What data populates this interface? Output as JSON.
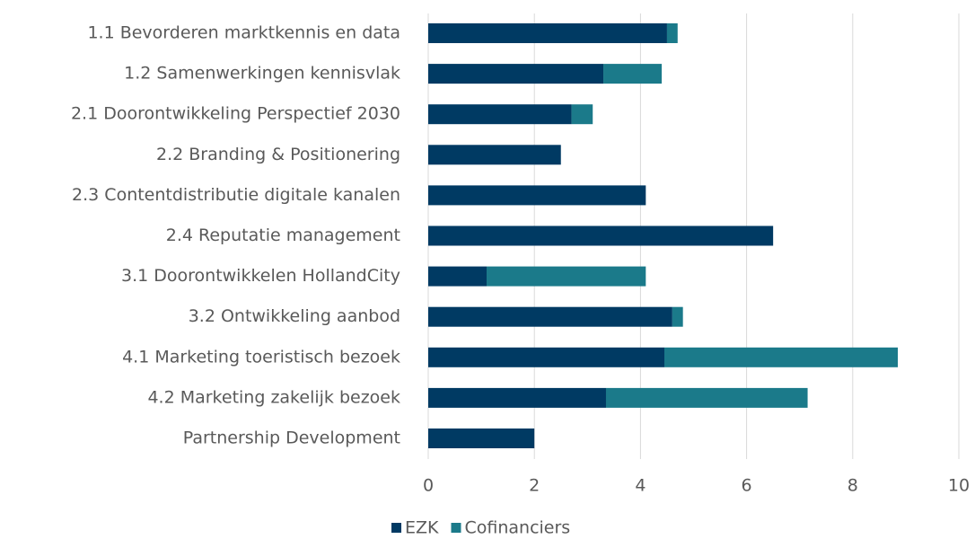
{
  "chart_data": {
    "type": "stacked-bar-horizontal",
    "categories": [
      "1.1 Bevorderen marktkennis en data",
      "1.2 Samenwerkingen kennisvlak",
      "2.1 Doorontwikkeling Perspectief 2030",
      "2.2 Branding & Positionering",
      "2.3 Contentdistributie digitale kanalen",
      "2.4 Reputatie management",
      "3.1 Doorontwikkelen HollandCity",
      "3.2 Ontwikkeling aanbod",
      "4.1 Marketing toeristisch bezoek",
      "4.2 Marketing zakelijk bezoek",
      "Partnership Development"
    ],
    "series": [
      {
        "name": "EZK",
        "color": "#003a63",
        "values": [
          4.5,
          3.3,
          2.7,
          2.5,
          4.1,
          6.5,
          1.1,
          4.6,
          4.45,
          3.35,
          2.0
        ]
      },
      {
        "name": "Cofinanciers",
        "color": "#1b7a8a",
        "values": [
          0.2,
          1.1,
          0.4,
          null,
          null,
          null,
          3.0,
          0.2,
          4.4,
          3.8,
          null
        ]
      }
    ],
    "xlim": [
      0,
      10
    ],
    "xticks": [
      0,
      2,
      4,
      6,
      8,
      10
    ],
    "grid": true,
    "legend": "bottom"
  }
}
